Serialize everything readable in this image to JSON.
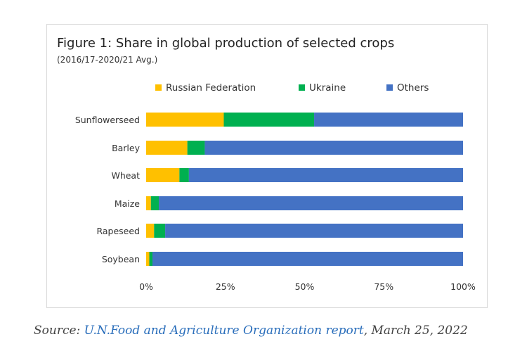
{
  "chart_data": {
    "type": "bar",
    "orientation": "horizontal",
    "stacked": true,
    "title": "Figure 1: Share in global production of selected crops",
    "subtitle": "(2016/17-2020/21 Avg.)",
    "categories": [
      "Sunflowerseed",
      "Barley",
      "Wheat",
      "Maize",
      "Rapeseed",
      "Soybean"
    ],
    "series": [
      {
        "name": "Russian Federation",
        "color": "#FFC000",
        "values": [
          24.5,
          13,
          10.5,
          1.5,
          2.5,
          1
        ]
      },
      {
        "name": "Ukraine",
        "color": "#00B050",
        "values": [
          28.5,
          5.5,
          3,
          2.5,
          3.5,
          1
        ]
      },
      {
        "name": "Others",
        "color": "#4472C4",
        "values": [
          47,
          81.5,
          86.5,
          96,
          94,
          98
        ]
      }
    ],
    "xlim": [
      0,
      100
    ],
    "x_ticks": [
      "0%",
      "25%",
      "50%",
      "75%",
      "100%"
    ],
    "legend_position": "top",
    "grid": false
  },
  "source": {
    "prefix": "Source: ",
    "link_text": "U.N.Food and Agriculture Organization report",
    "suffix": ", March 25, 2022"
  }
}
